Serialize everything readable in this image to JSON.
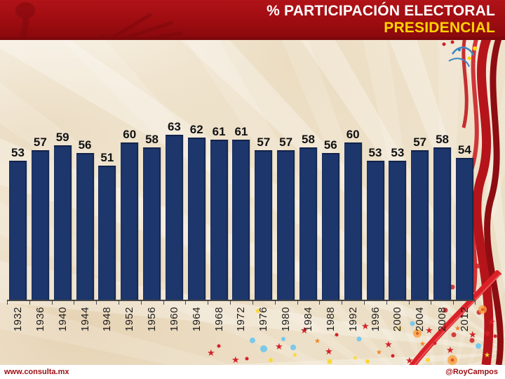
{
  "header": {
    "title_line1": "% PARTICIPACIÓN ELECTORAL",
    "title_line2": "PRESIDENCIAL"
  },
  "footer": {
    "left": "www.consulta.mx",
    "right": "@RoyCampos"
  },
  "chart_data": {
    "type": "bar",
    "title": "% PARTICIPACIÓN ELECTORAL PRESIDENCIAL",
    "categories": [
      "1932",
      "1936",
      "1940",
      "1944",
      "1948",
      "1952",
      "1956",
      "1960",
      "1964",
      "1968",
      "1972",
      "1976",
      "1980",
      "1984",
      "1988",
      "1992",
      "1996",
      "2000",
      "2004",
      "2008",
      "2012"
    ],
    "values": [
      53,
      57,
      59,
      56,
      51,
      60,
      58,
      63,
      62,
      61,
      61,
      57,
      57,
      58,
      56,
      60,
      53,
      53,
      57,
      58,
      54
    ],
    "xlabel": "",
    "ylabel": "",
    "ylim": [
      0,
      63
    ],
    "grid": false,
    "legend": "none",
    "value_labels_shown": true
  },
  "colors": {
    "header_bg": "#9d0c10",
    "header_bg_light": "#b01318",
    "header_bg_dark": "#8a090d",
    "title_color": "#ffffff",
    "subtitle_color": "#ffd400",
    "bar_color": "#1d366c",
    "value_label_color": "#111111",
    "footer_text": "#9d0c10"
  }
}
